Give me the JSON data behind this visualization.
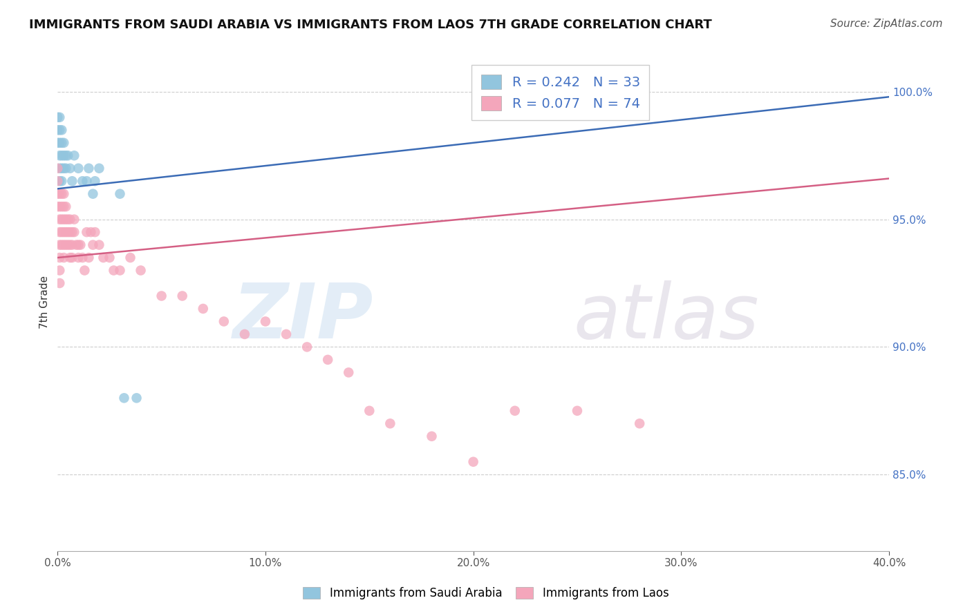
{
  "title": "IMMIGRANTS FROM SAUDI ARABIA VS IMMIGRANTS FROM LAOS 7TH GRADE CORRELATION CHART",
  "source": "Source: ZipAtlas.com",
  "ylabel": "7th Grade",
  "right_yticks": [
    85.0,
    90.0,
    95.0,
    100.0
  ],
  "legend_blue_r": "R = 0.242",
  "legend_blue_n": "N = 33",
  "legend_pink_r": "R = 0.077",
  "legend_pink_n": "N = 74",
  "blue_scatter": {
    "x": [
      0.0,
      0.0,
      0.0,
      0.001,
      0.001,
      0.001,
      0.001,
      0.001,
      0.001,
      0.002,
      0.002,
      0.002,
      0.002,
      0.002,
      0.003,
      0.003,
      0.003,
      0.004,
      0.004,
      0.005,
      0.006,
      0.007,
      0.008,
      0.01,
      0.012,
      0.014,
      0.015,
      0.017,
      0.018,
      0.02,
      0.03,
      0.032,
      0.038
    ],
    "y": [
      0.99,
      0.985,
      0.98,
      0.99,
      0.985,
      0.98,
      0.975,
      0.97,
      0.965,
      0.985,
      0.98,
      0.975,
      0.97,
      0.965,
      0.98,
      0.975,
      0.97,
      0.975,
      0.97,
      0.975,
      0.97,
      0.965,
      0.975,
      0.97,
      0.965,
      0.965,
      0.97,
      0.96,
      0.965,
      0.97,
      0.96,
      0.88,
      0.88
    ]
  },
  "pink_scatter": {
    "x": [
      0.0,
      0.0,
      0.0,
      0.0,
      0.001,
      0.001,
      0.001,
      0.001,
      0.001,
      0.001,
      0.001,
      0.001,
      0.002,
      0.002,
      0.002,
      0.002,
      0.002,
      0.003,
      0.003,
      0.003,
      0.003,
      0.003,
      0.003,
      0.004,
      0.004,
      0.004,
      0.004,
      0.005,
      0.005,
      0.005,
      0.006,
      0.006,
      0.006,
      0.006,
      0.007,
      0.007,
      0.007,
      0.008,
      0.008,
      0.009,
      0.01,
      0.01,
      0.011,
      0.012,
      0.013,
      0.014,
      0.015,
      0.016,
      0.017,
      0.018,
      0.02,
      0.022,
      0.025,
      0.027,
      0.03,
      0.035,
      0.04,
      0.05,
      0.06,
      0.07,
      0.08,
      0.09,
      0.1,
      0.11,
      0.12,
      0.13,
      0.14,
      0.15,
      0.16,
      0.18,
      0.2,
      0.22,
      0.25,
      0.28
    ],
    "y": [
      0.97,
      0.965,
      0.96,
      0.955,
      0.96,
      0.955,
      0.95,
      0.945,
      0.94,
      0.935,
      0.93,
      0.925,
      0.96,
      0.955,
      0.95,
      0.945,
      0.94,
      0.96,
      0.955,
      0.95,
      0.945,
      0.94,
      0.935,
      0.955,
      0.95,
      0.945,
      0.94,
      0.95,
      0.945,
      0.94,
      0.95,
      0.945,
      0.94,
      0.935,
      0.945,
      0.94,
      0.935,
      0.95,
      0.945,
      0.94,
      0.94,
      0.935,
      0.94,
      0.935,
      0.93,
      0.945,
      0.935,
      0.945,
      0.94,
      0.945,
      0.94,
      0.935,
      0.935,
      0.93,
      0.93,
      0.935,
      0.93,
      0.92,
      0.92,
      0.915,
      0.91,
      0.905,
      0.91,
      0.905,
      0.9,
      0.895,
      0.89,
      0.875,
      0.87,
      0.865,
      0.855,
      0.875,
      0.875,
      0.87
    ]
  },
  "blue_line": {
    "x0": 0.0,
    "x1": 0.4,
    "y0": 0.962,
    "y1": 0.998
  },
  "pink_line": {
    "x0": 0.0,
    "x1": 0.4,
    "y0": 0.935,
    "y1": 0.966
  },
  "blue_color": "#92c5de",
  "pink_color": "#f4a6bb",
  "blue_line_color": "#3b6bb5",
  "pink_line_color": "#d45f84",
  "watermark_zip": "ZIP",
  "watermark_atlas": "atlas",
  "xlim": [
    0.0,
    0.4
  ],
  "ylim": [
    0.82,
    1.015
  ],
  "xticks": [
    0.0,
    0.1,
    0.2,
    0.3,
    0.4
  ],
  "title_fontsize": 13,
  "source_fontsize": 11,
  "right_tick_color": "#4472c4"
}
